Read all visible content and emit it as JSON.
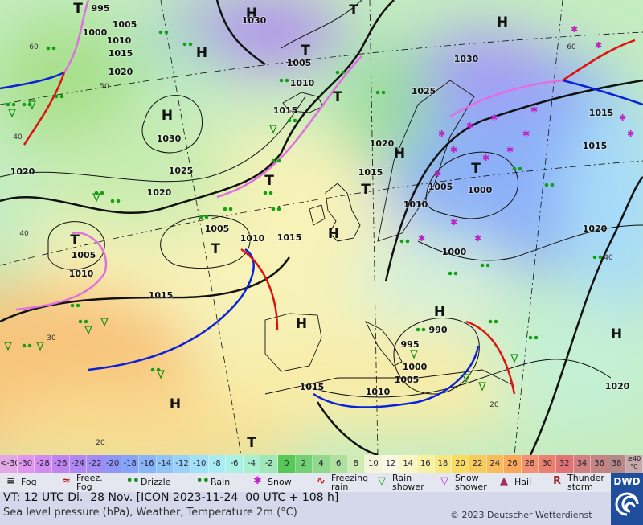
{
  "map": {
    "centers": [
      {
        "label": "H"
      },
      {
        "label": "H"
      },
      {
        "label": "H"
      },
      {
        "label": "T"
      },
      {
        "label": "T"
      },
      {
        "label": "T"
      },
      {
        "label": "H"
      },
      {
        "label": "T"
      },
      {
        "label": "T"
      },
      {
        "label": "T"
      },
      {
        "label": "T"
      },
      {
        "label": "T"
      },
      {
        "label": "H"
      },
      {
        "label": "H"
      },
      {
        "label": "H"
      },
      {
        "label": "T"
      },
      {
        "label": "H"
      },
      {
        "label": "T"
      },
      {
        "label": "H"
      },
      {
        "label": "H"
      }
    ],
    "isobar_labels": [
      995,
      1000,
      1005,
      1010,
      1015,
      1020,
      1030,
      1005,
      1010,
      1015,
      1030,
      1025,
      1020,
      1020,
      1005,
      1010,
      1015,
      1005,
      1010,
      1015,
      1030,
      1025,
      1020,
      1015,
      1010,
      1005,
      1000,
      1015,
      1015,
      1020,
      1000,
      990,
      995,
      1000,
      1005,
      1010,
      1015,
      1020
    ],
    "temperature_labels": [
      60,
      50,
      40,
      40,
      30,
      20,
      60,
      20,
      40
    ]
  },
  "legend": {
    "scale": [
      {
        "label": "<-30",
        "color": "#e4a8e4"
      },
      {
        "label": -30,
        "color": "#e096ec"
      },
      {
        "label": -28,
        "color": "#d08cf0"
      },
      {
        "label": -26,
        "color": "#c084f0"
      },
      {
        "label": -24,
        "color": "#b088f4"
      },
      {
        "label": -22,
        "color": "#a08cf4"
      },
      {
        "label": -20,
        "color": "#9096f8"
      },
      {
        "label": -18,
        "color": "#86a4f8"
      },
      {
        "label": -16,
        "color": "#88b4f8"
      },
      {
        "label": -14,
        "color": "#90c4f8"
      },
      {
        "label": -12,
        "color": "#98d2f8"
      },
      {
        "label": -10,
        "color": "#a0e0f8"
      },
      {
        "label": -8,
        "color": "#a8ecf4"
      },
      {
        "label": -6,
        "color": "#acf2e4"
      },
      {
        "label": -4,
        "color": "#a8f0d0"
      },
      {
        "label": -2,
        "color": "#a0e8b8"
      },
      {
        "label": 0,
        "color": "#58c858"
      },
      {
        "label": 2,
        "color": "#74d074"
      },
      {
        "label": 4,
        "color": "#92d88c"
      },
      {
        "label": 6,
        "color": "#b0e0a0"
      },
      {
        "label": 8,
        "color": "#d0ecb4"
      },
      {
        "label": 10,
        "color": "#f4f4d8"
      },
      {
        "label": 12,
        "color": "#f8f8e4"
      },
      {
        "label": 14,
        "color": "#f8f6c4"
      },
      {
        "label": 16,
        "color": "#f8f0a4"
      },
      {
        "label": 18,
        "color": "#f8e884"
      },
      {
        "label": 20,
        "color": "#f8dc64"
      },
      {
        "label": 22,
        "color": "#f8cc5c"
      },
      {
        "label": 24,
        "color": "#f8bc5c"
      },
      {
        "label": 26,
        "color": "#f8a858"
      },
      {
        "label": 28,
        "color": "#f49070"
      },
      {
        "label": 30,
        "color": "#ec8070"
      },
      {
        "label": 32,
        "color": "#e07474"
      },
      {
        "label": 34,
        "color": "#d08080"
      },
      {
        "label": 36,
        "color": "#c48484"
      },
      {
        "label": 38,
        "color": "#b88888"
      },
      {
        "label": "≥40 °C",
        "color": "#c8a8a8"
      }
    ],
    "symbols": [
      {
        "label": "Fog"
      },
      {
        "label": "Freez. Fog"
      },
      {
        "label": "Drizzle"
      },
      {
        "label": "Rain"
      },
      {
        "label": "Snow"
      },
      {
        "label": "Freezing rain"
      },
      {
        "label": "Rain shower"
      },
      {
        "label": "Snow shower"
      },
      {
        "label": "Hail"
      },
      {
        "label": "Thunder storm"
      }
    ]
  },
  "footer": {
    "valid_time": "VT: 12 UTC Di.  28 Nov. [ICON 2023-11-24  00 UTC + 108 h]",
    "description": "Sea level pressure (hPa), Weather, Temperature 2m (°C)",
    "copyright": "© 2023 Deutscher Wetterdienst",
    "logo": "DWD"
  }
}
